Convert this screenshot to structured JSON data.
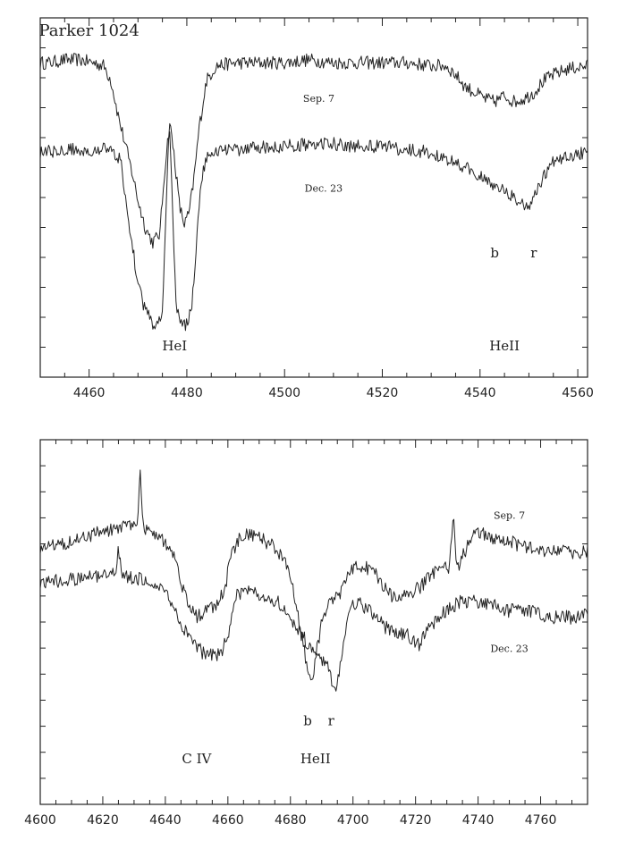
{
  "chart_data": [
    {
      "type": "line",
      "title": "Parker 1024",
      "xlabel": "",
      "ylabel": "",
      "xlim": [
        4450,
        4562
      ],
      "xticks": [
        4460,
        4480,
        4500,
        4520,
        4540,
        4560
      ],
      "grid": false,
      "series": [
        {
          "name": "Sep. 7",
          "points": [
            [
              4450,
              0.9
            ],
            [
              4452,
              0.9
            ],
            [
              4455,
              0.91
            ],
            [
              4458,
              0.91
            ],
            [
              4461,
              0.9
            ],
            [
              4463,
              0.89
            ],
            [
              4464.5,
              0.84
            ],
            [
              4466,
              0.72
            ],
            [
              4467.5,
              0.62
            ],
            [
              4469,
              0.52
            ],
            [
              4470,
              0.44
            ],
            [
              4471.5,
              0.35
            ],
            [
              4473,
              0.3
            ],
            [
              4474.5,
              0.33
            ],
            [
              4475.5,
              0.55
            ],
            [
              4476.5,
              0.7
            ],
            [
              4477.5,
              0.58
            ],
            [
              4478.5,
              0.42
            ],
            [
              4479.5,
              0.36
            ],
            [
              4480.5,
              0.4
            ],
            [
              4481.5,
              0.52
            ],
            [
              4482.5,
              0.68
            ],
            [
              4484,
              0.84
            ],
            [
              4486,
              0.89
            ],
            [
              4490,
              0.9
            ],
            [
              4495,
              0.9
            ],
            [
              4500,
              0.9
            ],
            [
              4505,
              0.91
            ],
            [
              4510,
              0.9
            ],
            [
              4515,
              0.9
            ],
            [
              4520,
              0.9
            ],
            [
              4525,
              0.9
            ],
            [
              4530,
              0.89
            ],
            [
              4533,
              0.89
            ],
            [
              4535,
              0.86
            ],
            [
              4537,
              0.82
            ],
            [
              4539,
              0.8
            ],
            [
              4541,
              0.78
            ],
            [
              4543,
              0.77
            ],
            [
              4545,
              0.79
            ],
            [
              4547,
              0.77
            ],
            [
              4549,
              0.78
            ],
            [
              4551,
              0.8
            ],
            [
              4553,
              0.84
            ],
            [
              4555,
              0.86
            ],
            [
              4558,
              0.88
            ],
            [
              4562,
              0.89
            ]
          ]
        },
        {
          "name": "Dec. 23",
          "points": [
            [
              4450,
              0.6
            ],
            [
              4455,
              0.61
            ],
            [
              4460,
              0.61
            ],
            [
              4463,
              0.61
            ],
            [
              4465,
              0.6
            ],
            [
              4466.5,
              0.57
            ],
            [
              4467.5,
              0.45
            ],
            [
              4468.5,
              0.32
            ],
            [
              4469.5,
              0.22
            ],
            [
              4470.5,
              0.13
            ],
            [
              4471.5,
              0.07
            ],
            [
              4473,
              0.03
            ],
            [
              4474,
              0.02
            ],
            [
              4475,
              0.08
            ],
            [
              4475.8,
              0.45
            ],
            [
              4476.4,
              0.72
            ],
            [
              4477,
              0.45
            ],
            [
              4477.8,
              0.08
            ],
            [
              4479,
              0.02
            ],
            [
              4480,
              0.03
            ],
            [
              4481,
              0.08
            ],
            [
              4482,
              0.3
            ],
            [
              4483,
              0.52
            ],
            [
              4484.5,
              0.6
            ],
            [
              4486,
              0.61
            ],
            [
              4490,
              0.61
            ],
            [
              4495,
              0.62
            ],
            [
              4500,
              0.62
            ],
            [
              4505,
              0.63
            ],
            [
              4510,
              0.63
            ],
            [
              4515,
              0.62
            ],
            [
              4520,
              0.62
            ],
            [
              4525,
              0.61
            ],
            [
              4530,
              0.6
            ],
            [
              4533,
              0.58
            ],
            [
              4536,
              0.56
            ],
            [
              4538,
              0.54
            ],
            [
              4540,
              0.52
            ],
            [
              4542,
              0.5
            ],
            [
              4544,
              0.48
            ],
            [
              4546,
              0.46
            ],
            [
              4548,
              0.44
            ],
            [
              4549.5,
              0.41
            ],
            [
              4551,
              0.45
            ],
            [
              4553,
              0.52
            ],
            [
              4555,
              0.57
            ],
            [
              4558,
              0.59
            ],
            [
              4562,
              0.6
            ]
          ]
        }
      ],
      "annotations": [
        {
          "text": "Parker 1024",
          "x": 4460,
          "y": 0.99,
          "size": "large"
        },
        {
          "text": "Sep. 7",
          "x": 4507,
          "y": 0.77,
          "size": "small"
        },
        {
          "text": "Dec. 23",
          "x": 4508,
          "y": 0.47,
          "size": "small"
        },
        {
          "text": "b",
          "x": 4543,
          "y": 0.25,
          "size": "medium"
        },
        {
          "text": "r",
          "x": 4551,
          "y": 0.25,
          "size": "medium"
        },
        {
          "text": "HeI",
          "x": 4477.5,
          "y": -0.06,
          "size": "medium"
        },
        {
          "text": "HeII",
          "x": 4545,
          "y": -0.06,
          "size": "medium"
        }
      ]
    },
    {
      "type": "line",
      "title": "",
      "xlabel": "",
      "ylabel": "",
      "xlim": [
        4600,
        4775
      ],
      "xticks": [
        4600,
        4620,
        4640,
        4660,
        4680,
        4700,
        4720,
        4740,
        4760
      ],
      "grid": false,
      "series": [
        {
          "name": "Sep. 7",
          "points": [
            [
              4600,
              0.71
            ],
            [
              4610,
              0.73
            ],
            [
              4620,
              0.76
            ],
            [
              4628,
              0.78
            ],
            [
              4631,
              0.79
            ],
            [
              4632,
              0.95
            ],
            [
              4633,
              0.77
            ],
            [
              4638,
              0.75
            ],
            [
              4642,
              0.7
            ],
            [
              4645,
              0.6
            ],
            [
              4648,
              0.52
            ],
            [
              4650,
              0.49
            ],
            [
              4653,
              0.51
            ],
            [
              4656,
              0.53
            ],
            [
              4659,
              0.58
            ],
            [
              4661,
              0.68
            ],
            [
              4664,
              0.75
            ],
            [
              4668,
              0.75
            ],
            [
              4672,
              0.73
            ],
            [
              4676,
              0.7
            ],
            [
              4679,
              0.65
            ],
            [
              4681,
              0.58
            ],
            [
              4683,
              0.47
            ],
            [
              4684.5,
              0.38
            ],
            [
              4686,
              0.31
            ],
            [
              4687,
              0.27
            ],
            [
              4688,
              0.36
            ],
            [
              4690,
              0.47
            ],
            [
              4692,
              0.52
            ],
            [
              4694,
              0.55
            ],
            [
              4696,
              0.57
            ],
            [
              4698,
              0.61
            ],
            [
              4701,
              0.66
            ],
            [
              4704,
              0.65
            ],
            [
              4707,
              0.63
            ],
            [
              4710,
              0.58
            ],
            [
              4713,
              0.55
            ],
            [
              4716,
              0.55
            ],
            [
              4719,
              0.57
            ],
            [
              4722,
              0.59
            ],
            [
              4725,
              0.63
            ],
            [
              4728,
              0.64
            ],
            [
              4731,
              0.65
            ],
            [
              4732,
              0.83
            ],
            [
              4733,
              0.64
            ],
            [
              4735,
              0.68
            ],
            [
              4738,
              0.75
            ],
            [
              4741,
              0.76
            ],
            [
              4745,
              0.74
            ],
            [
              4750,
              0.73
            ],
            [
              4755,
              0.71
            ],
            [
              4760,
              0.7
            ],
            [
              4765,
              0.7
            ],
            [
              4770,
              0.69
            ],
            [
              4775,
              0.7
            ]
          ]
        },
        {
          "name": "Dec. 23",
          "points": [
            [
              4600,
              0.6
            ],
            [
              4610,
              0.61
            ],
            [
              4620,
              0.62
            ],
            [
              4624,
              0.63
            ],
            [
              4625,
              0.72
            ],
            [
              4626,
              0.62
            ],
            [
              4632,
              0.61
            ],
            [
              4638,
              0.59
            ],
            [
              4643,
              0.52
            ],
            [
              4646,
              0.45
            ],
            [
              4649,
              0.4
            ],
            [
              4652,
              0.38
            ],
            [
              4655,
              0.37
            ],
            [
              4658,
              0.38
            ],
            [
              4661,
              0.47
            ],
            [
              4663,
              0.56
            ],
            [
              4666,
              0.58
            ],
            [
              4670,
              0.56
            ],
            [
              4674,
              0.55
            ],
            [
              4677,
              0.53
            ],
            [
              4680,
              0.5
            ],
            [
              4682,
              0.45
            ],
            [
              4684,
              0.43
            ],
            [
              4686,
              0.4
            ],
            [
              4688,
              0.38
            ],
            [
              4690,
              0.36
            ],
            [
              4692,
              0.33
            ],
            [
              4693.5,
              0.28
            ],
            [
              4695,
              0.27
            ],
            [
              4696,
              0.36
            ],
            [
              4698,
              0.48
            ],
            [
              4700,
              0.53
            ],
            [
              4703,
              0.53
            ],
            [
              4706,
              0.5
            ],
            [
              4710,
              0.46
            ],
            [
              4714,
              0.44
            ],
            [
              4718,
              0.43
            ],
            [
              4721,
              0.4
            ],
            [
              4724,
              0.45
            ],
            [
              4727,
              0.49
            ],
            [
              4731,
              0.52
            ],
            [
              4735,
              0.54
            ],
            [
              4740,
              0.54
            ],
            [
              4745,
              0.53
            ],
            [
              4750,
              0.51
            ],
            [
              4755,
              0.51
            ],
            [
              4760,
              0.5
            ],
            [
              4765,
              0.49
            ],
            [
              4770,
              0.49
            ],
            [
              4775,
              0.5
            ]
          ]
        }
      ],
      "annotations": [
        {
          "text": "Sep. 7",
          "x": 4750,
          "y": 0.8,
          "size": "small"
        },
        {
          "text": "Dec. 23",
          "x": 4750,
          "y": 0.38,
          "size": "small"
        },
        {
          "text": "b",
          "x": 4685.5,
          "y": 0.15,
          "size": "medium"
        },
        {
          "text": "r",
          "x": 4693,
          "y": 0.15,
          "size": "medium"
        },
        {
          "text": "C IV",
          "x": 4650,
          "y": 0.03,
          "size": "medium"
        },
        {
          "text": "HeII",
          "x": 4688,
          "y": 0.03,
          "size": "medium"
        }
      ]
    }
  ]
}
